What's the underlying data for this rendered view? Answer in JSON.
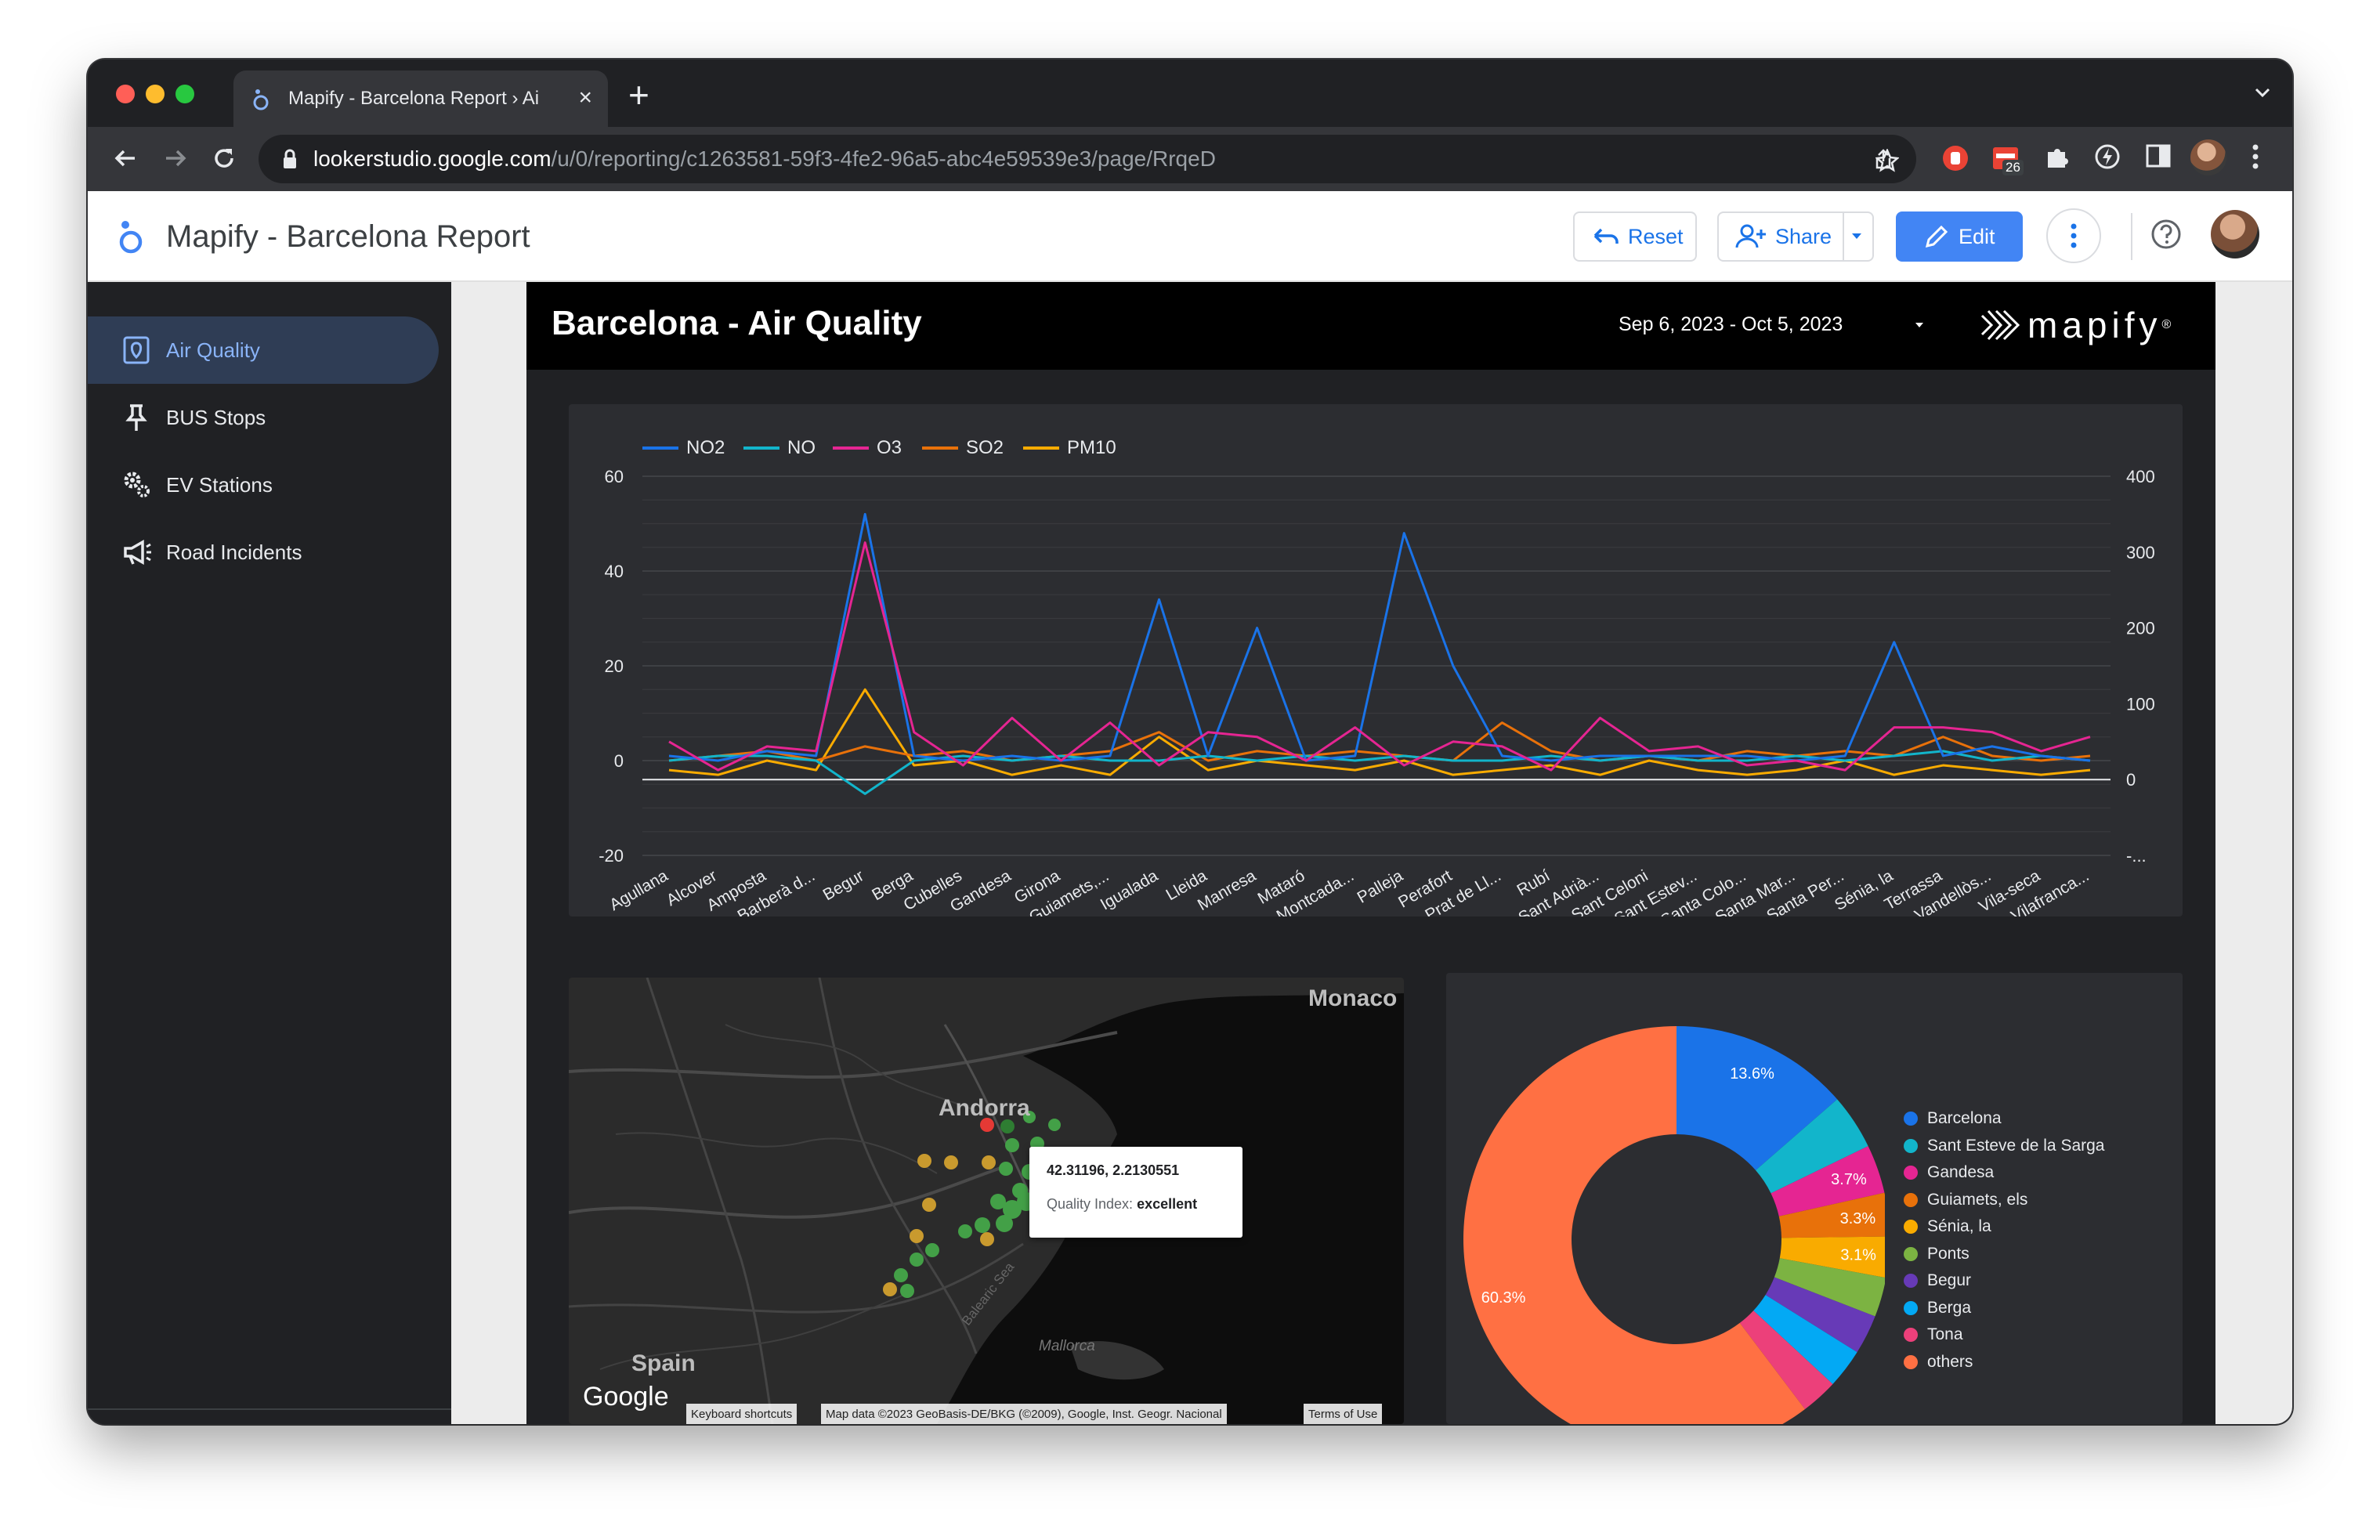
{
  "browser": {
    "tab_title": "Mapify - Barcelona Report › Ai",
    "url_host": "lookerstudio.google.com",
    "url_path": "/u/0/reporting/c1263581-59f3-4fe2-96a5-abc4e59539e3/page/RrqeD",
    "ext_badge": "26"
  },
  "app": {
    "title": "Mapify - Barcelona Report",
    "reset_label": "Reset",
    "share_label": "Share",
    "edit_label": "Edit"
  },
  "sidebar": {
    "items": [
      {
        "label": "Air Quality",
        "icon": "map-pin-box-icon"
      },
      {
        "label": "BUS Stops",
        "icon": "pushpin-icon"
      },
      {
        "label": "EV Stations",
        "icon": "gears-icon"
      },
      {
        "label": "Road Incidents",
        "icon": "megaphone-icon"
      }
    ]
  },
  "report": {
    "title": "Barcelona - Air Quality",
    "date_range": "Sep 6, 2023 - Oct 5, 2023",
    "brand": "mapify",
    "brand_mark": "®"
  },
  "colors": {
    "NO2": "#1a73e8",
    "NO": "#12b5cb",
    "O3": "#e52592",
    "SO2": "#e8710a",
    "PM10": "#f9ab00"
  },
  "chart_data": [
    {
      "type": "line",
      "categories": [
        "Agullana",
        "Alcover",
        "Amposta",
        "Barberà d...",
        "Begur",
        "Berga",
        "Cubelles",
        "Gandesa",
        "Girona",
        "Guiamets,...",
        "Igualada",
        "Lleida",
        "Manresa",
        "Mataró",
        "Montcada...",
        "Palleja",
        "Perafort",
        "Prat de Ll...",
        "Rubí",
        "Sant Adrià...",
        "Sant Celoni",
        "Sant Estev...",
        "Santa Colo...",
        "Santa Mar...",
        "Santa Per...",
        "Sénia, la",
        "Terrassa",
        "Vandellòs...",
        "Vila-seca",
        "Vilafranca..."
      ],
      "series": [
        {
          "name": "NO2",
          "axis": "left",
          "values": [
            1,
            0,
            2,
            1,
            52,
            1,
            0,
            1,
            0,
            1,
            34,
            1,
            28,
            0,
            1,
            48,
            20,
            1,
            0,
            1,
            1,
            1,
            1,
            0,
            1,
            25,
            1,
            3,
            1,
            0
          ]
        },
        {
          "name": "NO",
          "axis": "left",
          "values": [
            0,
            1,
            1,
            0,
            -7,
            0,
            1,
            0,
            1,
            0,
            0,
            1,
            0,
            1,
            0,
            1,
            0,
            0,
            1,
            0,
            1,
            0,
            0,
            1,
            0,
            1,
            2,
            0,
            1,
            0
          ]
        },
        {
          "name": "O3",
          "axis": "left",
          "values": [
            4,
            -2,
            3,
            2,
            46,
            6,
            -1,
            9,
            0,
            8,
            -1,
            6,
            5,
            0,
            7,
            -1,
            4,
            3,
            -2,
            9,
            2,
            3,
            -1,
            0,
            -2,
            7,
            7,
            6,
            2,
            5
          ]
        },
        {
          "name": "SO2",
          "axis": "left",
          "values": [
            0,
            1,
            2,
            0,
            3,
            1,
            2,
            0,
            1,
            2,
            6,
            0,
            2,
            1,
            2,
            1,
            0,
            8,
            2,
            0,
            1,
            0,
            2,
            1,
            2,
            1,
            5,
            1,
            0,
            1
          ]
        },
        {
          "name": "PM10",
          "axis": "left",
          "values": [
            -2,
            -3,
            0,
            -2,
            15,
            -1,
            0,
            -3,
            -1,
            -3,
            5,
            -2,
            0,
            -1,
            -2,
            0,
            -3,
            -2,
            -1,
            -3,
            0,
            -2,
            -3,
            -2,
            0,
            -3,
            -1,
            -2,
            -3,
            -2
          ]
        }
      ],
      "ylim_left": [
        -20,
        60
      ],
      "yticks_left": [
        "60",
        "40",
        "20",
        "0",
        "-20"
      ],
      "yticks_right": [
        "400",
        "300",
        "200",
        "100",
        "0",
        "-..."
      ],
      "grid": true,
      "legend_position": "top-left"
    },
    {
      "type": "pie",
      "donut": true,
      "slices": [
        {
          "label": "Barcelona",
          "value": 13.6,
          "color": "#1a73e8"
        },
        {
          "label": "Sant Esteve de la Sarga",
          "value": 4.2,
          "color": "#12b5cb"
        },
        {
          "label": "Gandesa",
          "value": 3.7,
          "color": "#e52592"
        },
        {
          "label": "Guiamets, els",
          "value": 3.3,
          "color": "#e8710a"
        },
        {
          "label": "Sénia, la",
          "value": 3.1,
          "color": "#f9ab00"
        },
        {
          "label": "Ponts",
          "value": 3.0,
          "color": "#7cb342"
        },
        {
          "label": "Begur",
          "value": 3.0,
          "color": "#673ab7"
        },
        {
          "label": "Berga",
          "value": 3.0,
          "color": "#03a9f4"
        },
        {
          "label": "Tona",
          "value": 2.8,
          "color": "#ec407a"
        },
        {
          "label": "others",
          "value": 60.3,
          "color": "#ff7043"
        }
      ],
      "data_labels": [
        "13.6%",
        "3.7%",
        "3.3%",
        "3.1%",
        "60.3%"
      ],
      "legend_position": "right"
    }
  ],
  "map": {
    "labels": {
      "monaco": "Monaco",
      "andorra": "Andorra",
      "spain": "Spain",
      "balearic": "Balearic Sea",
      "mallorca": "Mallorca"
    },
    "tooltip_coords": "42.31196, 2.2130551",
    "tooltip_label": "Quality Index:",
    "tooltip_value": "excellent",
    "google": "Google",
    "attr_shortcuts": "Keyboard shortcuts",
    "attr_data": "Map data ©2023 GeoBasis-DE/BKG (©2009), Google, Inst. Geogr. Nacional",
    "attr_terms": "Terms of Use"
  }
}
